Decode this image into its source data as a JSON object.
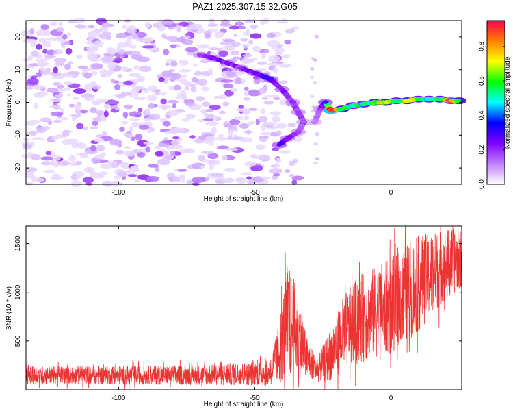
{
  "title": "PAZ1.2025.307.15.32.G05",
  "chart_data": [
    {
      "type": "heatmap",
      "name": "spectrogram",
      "xlabel": "Height of straight line (km)",
      "ylabel": "Frequency (Hz)",
      "xlim": [
        -134,
        26
      ],
      "ylim": [
        -25,
        25
      ],
      "xticks": [
        -100,
        -50,
        0
      ],
      "yticks": [
        -20,
        -10,
        0,
        10,
        20
      ],
      "colorbar": {
        "label": "Normalized spectral amplitude",
        "range": [
          0,
          0.95
        ],
        "ticks": [
          0.0,
          0.2,
          0.4,
          0.6,
          0.8
        ],
        "tick_labels": [
          "0.0",
          "0.2",
          "0.4",
          "0.6",
          "0.8"
        ],
        "colors": [
          "#ffffff",
          "#c080ff",
          "#8000ff",
          "#0000ff",
          "#00ffff",
          "#00ff00",
          "#ffff00",
          "#ff8000",
          "#ff0050"
        ]
      },
      "ridge": [
        {
          "x": -70,
          "y": 14.5,
          "a": 0.18
        },
        {
          "x": -65,
          "y": 13.5,
          "a": 0.22
        },
        {
          "x": -60,
          "y": 12,
          "a": 0.22
        },
        {
          "x": -55,
          "y": 10.5,
          "a": 0.2
        },
        {
          "x": -50,
          "y": 9,
          "a": 0.25
        },
        {
          "x": -47,
          "y": 8,
          "a": 0.3
        },
        {
          "x": -44,
          "y": 7,
          "a": 0.28
        },
        {
          "x": -40,
          "y": 4,
          "a": 0.22
        },
        {
          "x": -36,
          "y": 0,
          "a": 0.2
        },
        {
          "x": -34,
          "y": -3,
          "a": 0.18
        },
        {
          "x": -32,
          "y": -6,
          "a": 0.15
        },
        {
          "x": -34,
          "y": -9,
          "a": 0.18
        },
        {
          "x": -38,
          "y": -11,
          "a": 0.22
        },
        {
          "x": -41,
          "y": -13,
          "a": 0.28
        },
        {
          "x": -28,
          "y": -6,
          "a": 0.12
        },
        {
          "x": -26,
          "y": -2,
          "a": 0.18
        },
        {
          "x": -24,
          "y": 0,
          "a": 0.3
        },
        {
          "x": -22,
          "y": -2.5,
          "a": 0.9
        },
        {
          "x": -18,
          "y": -2,
          "a": 0.6
        },
        {
          "x": -14,
          "y": -1,
          "a": 0.5
        },
        {
          "x": -10,
          "y": -0.5,
          "a": 0.55
        },
        {
          "x": -6,
          "y": 0,
          "a": 0.6
        },
        {
          "x": -2,
          "y": 0,
          "a": 0.7
        },
        {
          "x": 2,
          "y": 0.5,
          "a": 0.55
        },
        {
          "x": 6,
          "y": 0.5,
          "a": 0.7
        },
        {
          "x": 10,
          "y": 1,
          "a": 0.55
        },
        {
          "x": 14,
          "y": 1,
          "a": 0.5
        },
        {
          "x": 18,
          "y": 1,
          "a": 0.55
        },
        {
          "x": 22,
          "y": 0.5,
          "a": 0.8
        },
        {
          "x": 25,
          "y": 0.5,
          "a": 0.6
        }
      ]
    },
    {
      "type": "line",
      "name": "snr",
      "xlabel": "Height of straight line (km)",
      "ylabel": "SNR (10 * v/v)",
      "xlim": [
        -134,
        26
      ],
      "ylim": [
        0,
        1680
      ],
      "xticks": [
        -100,
        -50,
        0
      ],
      "yticks": [
        500,
        1000,
        1500
      ],
      "color": "#ee3333",
      "envelope": [
        {
          "x": -134,
          "mean": 150,
          "amp": 90
        },
        {
          "x": -70,
          "mean": 150,
          "amp": 100
        },
        {
          "x": -45,
          "mean": 170,
          "amp": 130
        },
        {
          "x": -42,
          "mean": 300,
          "amp": 250
        },
        {
          "x": -38,
          "mean": 700,
          "amp": 600
        },
        {
          "x": -35,
          "mean": 600,
          "amp": 500
        },
        {
          "x": -31,
          "mean": 330,
          "amp": 220
        },
        {
          "x": -27,
          "mean": 200,
          "amp": 120
        },
        {
          "x": -23,
          "mean": 330,
          "amp": 250
        },
        {
          "x": -18,
          "mean": 560,
          "amp": 380
        },
        {
          "x": -12,
          "mean": 720,
          "amp": 450
        },
        {
          "x": -5,
          "mean": 800,
          "amp": 480
        },
        {
          "x": 0,
          "mean": 850,
          "amp": 500
        },
        {
          "x": 5,
          "mean": 980,
          "amp": 500
        },
        {
          "x": 10,
          "mean": 1080,
          "amp": 500
        },
        {
          "x": 15,
          "mean": 1200,
          "amp": 420
        },
        {
          "x": 20,
          "mean": 1280,
          "amp": 380
        },
        {
          "x": 26,
          "mean": 1350,
          "amp": 300
        }
      ]
    }
  ]
}
